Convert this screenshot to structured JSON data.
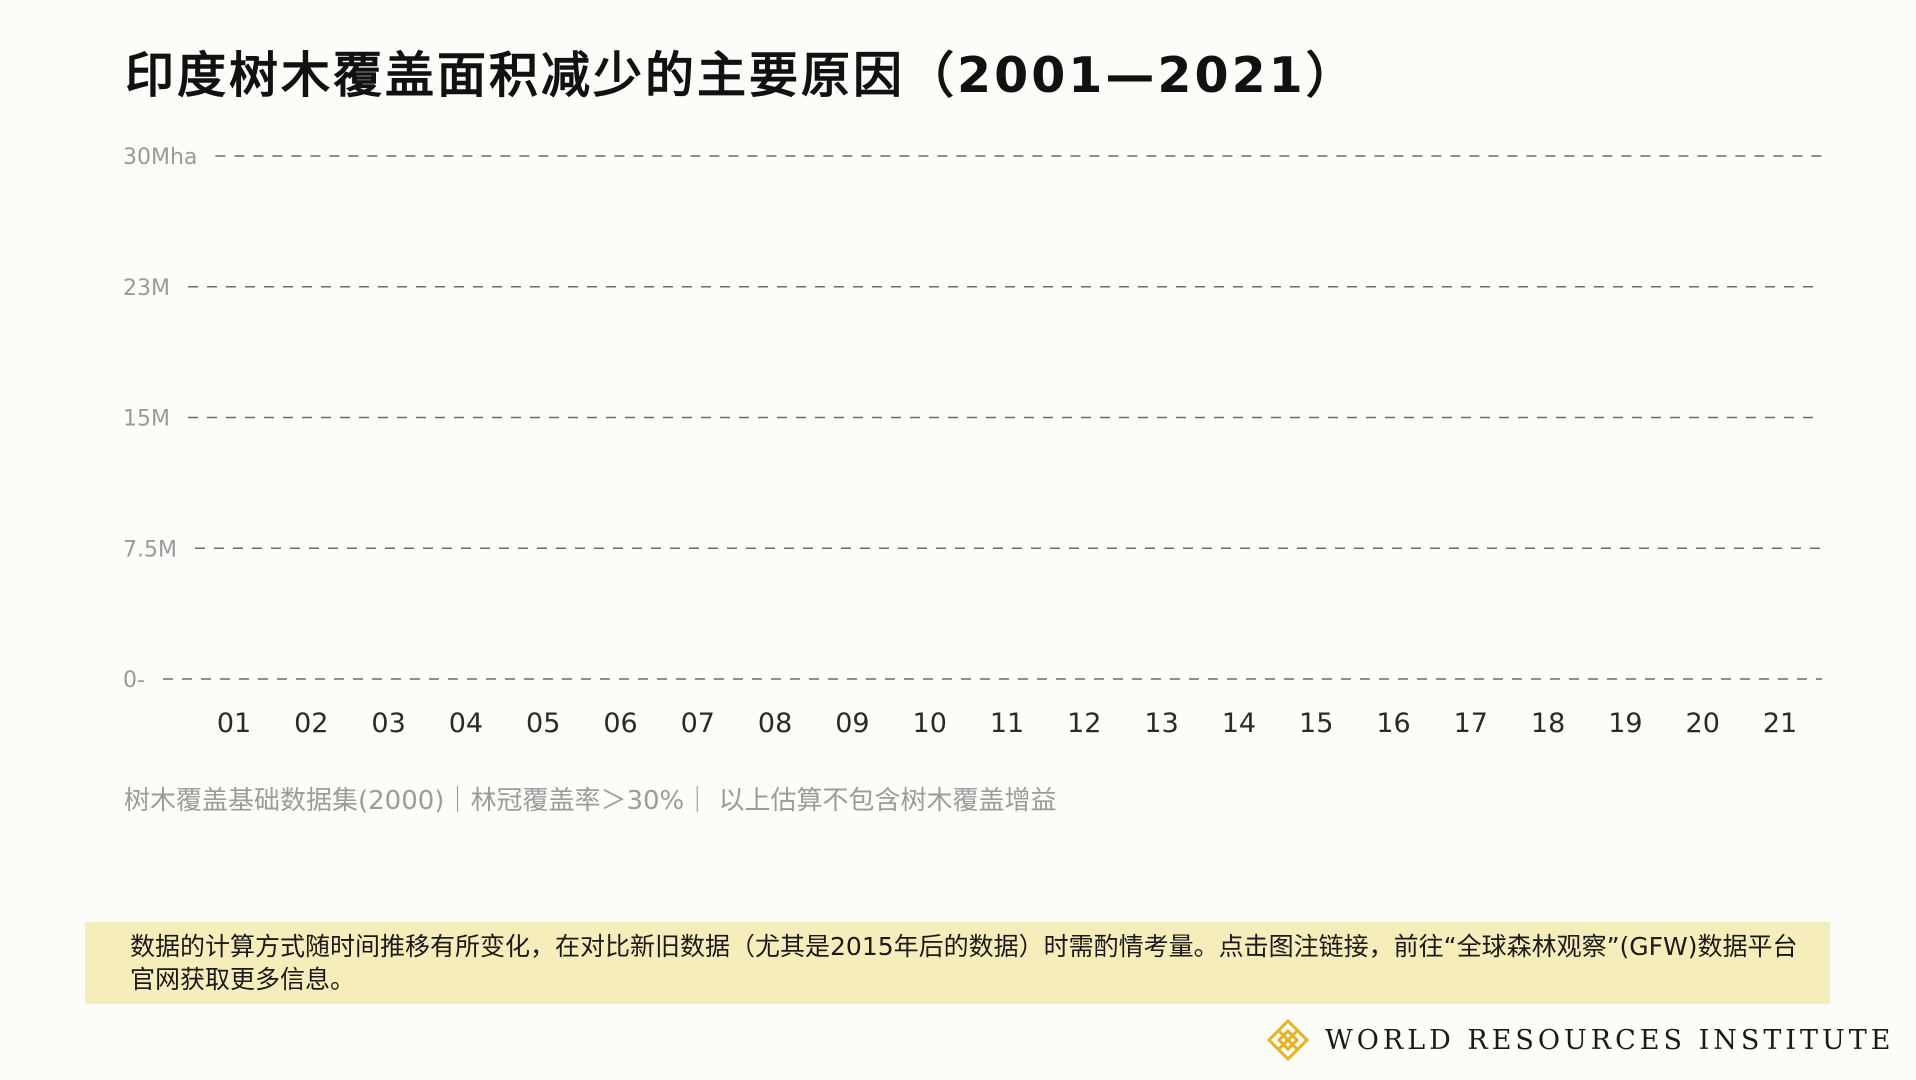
{
  "colors": {
    "background": "#fcfcf8",
    "gridline": "#6b6b6b",
    "axis_text": "#9a9a9a",
    "tick_text": "#2a2a2a",
    "disclaimer_bg": "#f6eeba",
    "logo_gold": "#e8b21f"
  },
  "chart_data": {
    "type": "bar",
    "title": "印度树木覆盖面积减少的主要原因（2001—2021）",
    "categories": [
      "01",
      "02",
      "03",
      "04",
      "05",
      "06",
      "07",
      "08",
      "09",
      "10",
      "11",
      "12",
      "13",
      "14",
      "15",
      "16",
      "17",
      "18",
      "19",
      "20",
      "21"
    ],
    "series": [],
    "yticks": [
      {
        "value": 0,
        "label": "0-"
      },
      {
        "value": 7.5,
        "label": "7.5M"
      },
      {
        "value": 15,
        "label": "15M"
      },
      {
        "value": 22.5,
        "label": "23M"
      },
      {
        "value": 30,
        "label": "30Mha"
      }
    ],
    "ylim": [
      0,
      30
    ],
    "grid": true,
    "grid_style": "dashed"
  },
  "subnote": "树木覆盖基础数据集(2000)｜林冠覆盖率＞30%｜ 以上估算不包含树木覆盖增益",
  "disclaimer": "数据的计算方式随时间推移有所变化，在对比新旧数据（尤其是2015年后的数据）时需酌情考量。点击图注链接，前往“全球森林观察”(GFW)数据平台官网获取更多信息。",
  "brand": {
    "logo_icon": "wri-logo-icon",
    "name": "WORLD RESOURCES INSTITUTE"
  }
}
